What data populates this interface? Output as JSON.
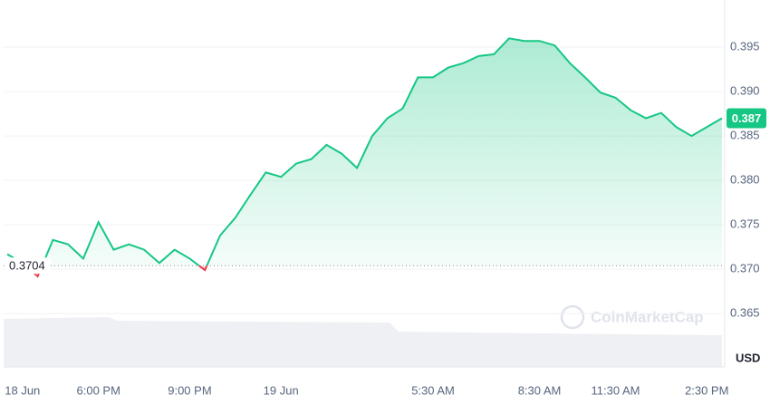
{
  "chart_data": {
    "type": "line",
    "categories": [
      null,
      "18 Jun",
      null,
      null,
      null,
      null,
      "6:00 PM",
      null,
      null,
      null,
      null,
      null,
      "9:00 PM",
      null,
      null,
      null,
      null,
      null,
      "19 Jun",
      null,
      null,
      null,
      null,
      null,
      null,
      null,
      null,
      null,
      "5:30 AM",
      null,
      null,
      null,
      null,
      null,
      null,
      "8:30 AM",
      null,
      null,
      null,
      null,
      "11:30 AM",
      null,
      null,
      null,
      null,
      null,
      "2:30 PM",
      null
    ],
    "values": [
      0.3717,
      0.3707,
      0.3692,
      0.3733,
      0.3728,
      0.3712,
      0.3753,
      0.3722,
      0.3728,
      0.3722,
      0.3707,
      0.3722,
      0.3712,
      0.3699,
      0.3738,
      0.3758,
      0.3784,
      0.3809,
      0.3804,
      0.3819,
      0.3824,
      0.384,
      0.383,
      0.3814,
      0.385,
      0.387,
      0.3881,
      0.3916,
      0.3916,
      0.3927,
      0.3932,
      0.394,
      0.3942,
      0.396,
      0.3957,
      0.3957,
      0.3952,
      0.3932,
      0.3916,
      0.3899,
      0.3893,
      0.3879,
      0.387,
      0.3876,
      0.386,
      0.385,
      0.386,
      0.387
    ],
    "color": "#16c784",
    "down_color": "#ea3943",
    "baseline": 0.3704,
    "current_price": 0.387,
    "ylim": [
      0.359,
      0.3998
    ],
    "yticks": [
      0.365,
      {
        "value": 0.37,
        "label": "0.370"
      },
      0.375,
      {
        "value": 0.38,
        "label": "0.380"
      },
      0.385,
      {
        "value": 0.39,
        "label": "0.390"
      },
      0.395
    ],
    "grid": true,
    "currency": "USD",
    "watermark": "CoinMarketCap"
  }
}
